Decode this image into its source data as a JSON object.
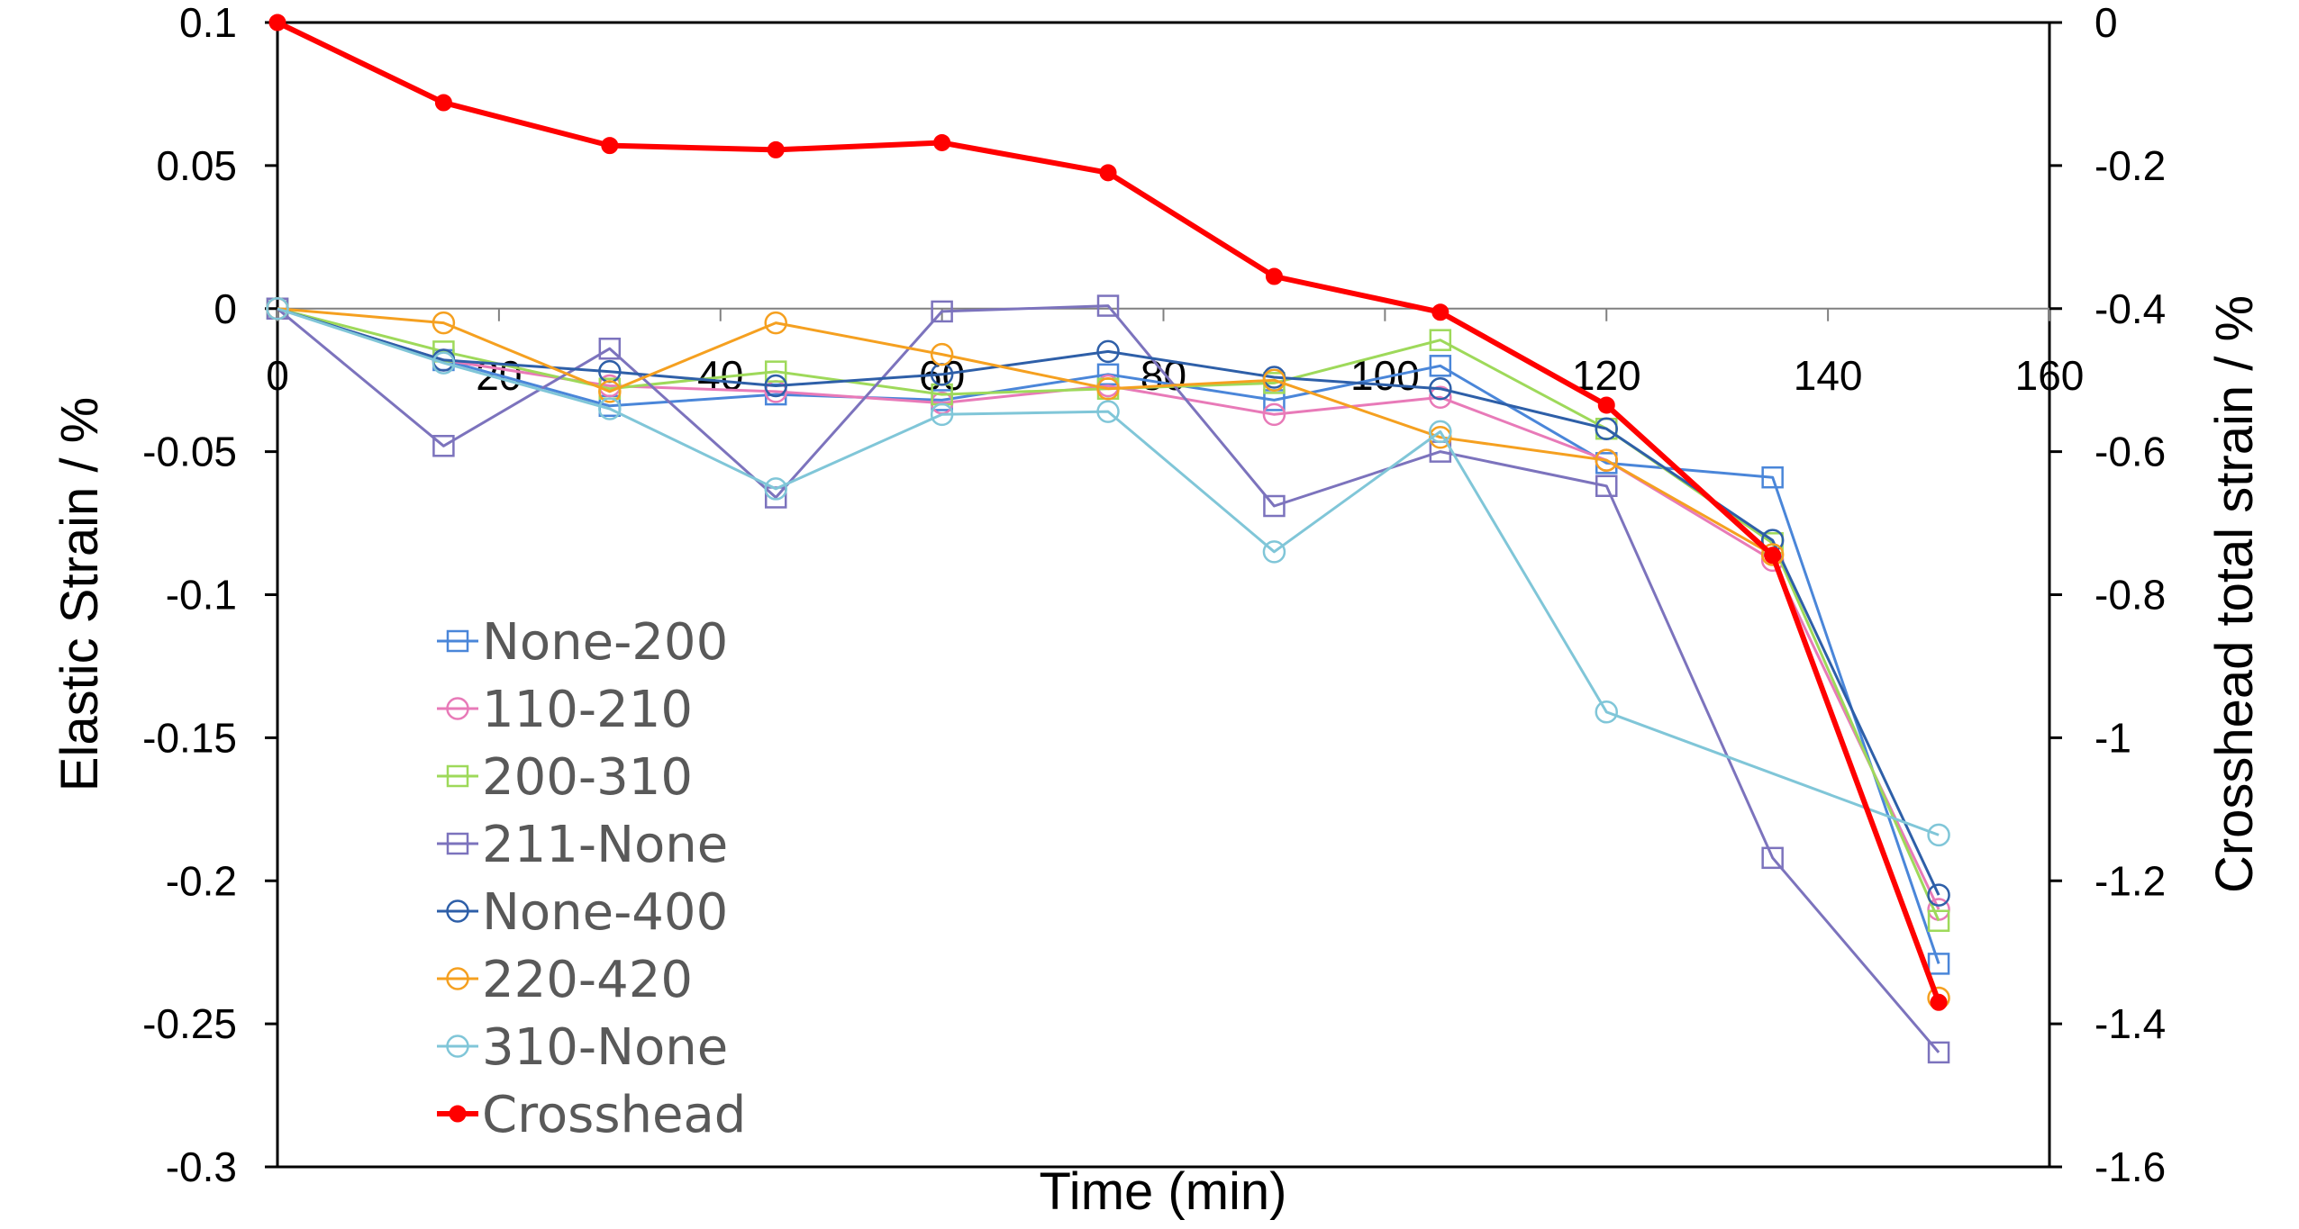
{
  "chart_data": {
    "type": "line",
    "xlabel": "Time (min)",
    "ylabel_left": "Elastic Strain / %",
    "ylabel_right": "Crosshead total strain / %",
    "xlim": [
      0,
      160
    ],
    "ylim_left": [
      -0.3,
      0.1
    ],
    "ylim_right": [
      -1.6,
      0
    ],
    "x_ticks": [
      0,
      20,
      40,
      60,
      80,
      100,
      120,
      140,
      160
    ],
    "x_tick_labels": [
      "0",
      "20",
      "40",
      "60",
      "80",
      "100",
      "120",
      "140",
      "160"
    ],
    "y_left_ticks": [
      0.1,
      0.05,
      0,
      -0.05,
      -0.1,
      -0.15,
      -0.2,
      -0.25,
      -0.3
    ],
    "y_left_tick_labels": [
      "0.1",
      "0.05",
      "0",
      "-0.05",
      "-0.1",
      "-0.15",
      "-0.2",
      "-0.25",
      "-0.3"
    ],
    "y_right_ticks": [
      0,
      -0.2,
      -0.4,
      -0.6,
      -0.8,
      -1,
      -1.2,
      -1.4,
      -1.6
    ],
    "y_right_tick_labels": [
      "0",
      "-0.2",
      "-0.4",
      "-0.6",
      "-0.8",
      "-1",
      "-1.2",
      "-1.4",
      "-1.6"
    ],
    "grid": false,
    "legend_position": "bottom-left",
    "x": [
      0,
      15,
      30,
      45,
      60,
      75,
      90,
      105,
      120,
      135,
      150
    ],
    "series": [
      {
        "name": "None-200",
        "axis": "left",
        "marker": "square",
        "color": "#4A86D9",
        "values": [
          0,
          -0.018,
          -0.034,
          -0.03,
          -0.032,
          -0.023,
          -0.032,
          -0.02,
          -0.054,
          -0.059,
          -0.229
        ]
      },
      {
        "name": "110-210",
        "axis": "left",
        "marker": "circle",
        "color": "#E87AB8",
        "values": [
          0,
          -0.018,
          -0.027,
          -0.029,
          -0.033,
          -0.027,
          -0.037,
          -0.031,
          -0.053,
          -0.088,
          -0.21
        ]
      },
      {
        "name": "200-310",
        "axis": "left",
        "marker": "square",
        "color": "#9ED95A",
        "values": [
          0,
          -0.015,
          -0.028,
          -0.022,
          -0.03,
          -0.028,
          -0.026,
          -0.011,
          -0.042,
          -0.082,
          -0.214
        ]
      },
      {
        "name": "211-None",
        "axis": "left",
        "marker": "square",
        "color": "#7C73BD",
        "values": [
          0,
          -0.048,
          -0.014,
          -0.066,
          -0.001,
          0.001,
          -0.069,
          -0.05,
          -0.062,
          -0.192,
          -0.26
        ]
      },
      {
        "name": "None-400",
        "axis": "left",
        "marker": "circle",
        "color": "#2E5FA8",
        "values": [
          0,
          -0.018,
          -0.022,
          -0.027,
          -0.023,
          -0.015,
          -0.024,
          -0.028,
          -0.042,
          -0.081,
          -0.205
        ]
      },
      {
        "name": "220-420",
        "axis": "left",
        "marker": "circle",
        "color": "#F5A020",
        "values": [
          0,
          -0.005,
          -0.029,
          -0.005,
          -0.016,
          -0.028,
          -0.025,
          -0.045,
          -0.053,
          -0.086,
          -0.241
        ]
      },
      {
        "name": "310-None",
        "axis": "left",
        "marker": "circle",
        "color": "#80C6D8",
        "values": [
          0,
          -0.019,
          -0.035,
          -0.063,
          -0.037,
          -0.036,
          -0.085,
          -0.043,
          -0.141,
          null,
          -0.184
        ]
      },
      {
        "name": "Crosshead",
        "axis": "right",
        "marker": "filled-circle",
        "color": "#FF0000",
        "values": [
          0,
          -0.112,
          -0.172,
          -0.178,
          -0.168,
          -0.21,
          -0.355,
          -0.405,
          -0.535,
          -0.745,
          -1.37
        ]
      }
    ]
  }
}
